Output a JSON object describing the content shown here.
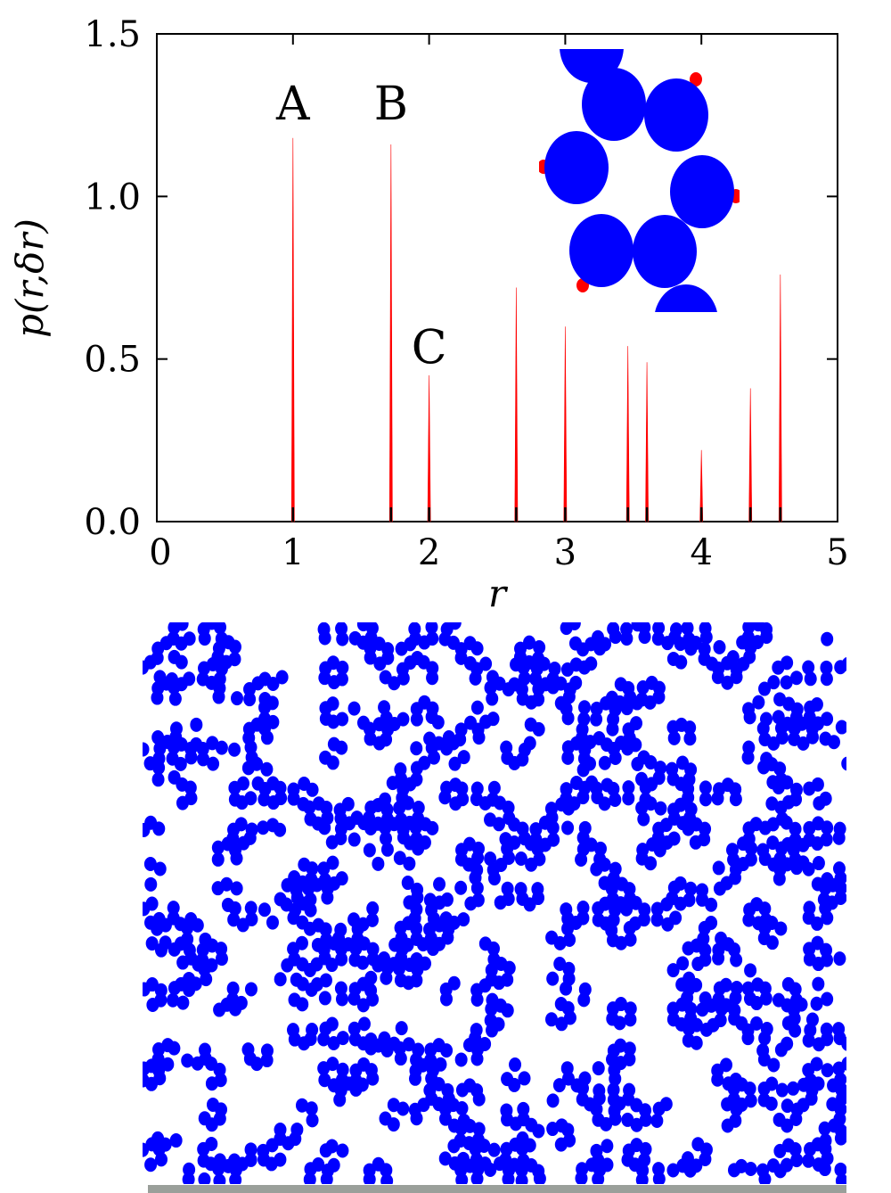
{
  "chart_data": {
    "type": "line",
    "xlabel": "r",
    "ylabel": "p(r,δr)",
    "xlim": [
      0,
      5
    ],
    "ylim": [
      0,
      1.5
    ],
    "x_ticks": [
      "0",
      "1",
      "2",
      "3",
      "4",
      "5"
    ],
    "y_ticks": [
      "0.0",
      "0.5",
      "1.0",
      "1.5"
    ],
    "grid": false,
    "series": [
      {
        "color": "#ff0000",
        "peaks": [
          {
            "x": 1.0,
            "y": 1.18
          },
          {
            "x": 1.72,
            "y": 1.16
          },
          {
            "x": 2.0,
            "y": 0.45
          },
          {
            "x": 2.64,
            "y": 0.72
          },
          {
            "x": 3.0,
            "y": 0.6
          },
          {
            "x": 3.46,
            "y": 0.54
          },
          {
            "x": 3.6,
            "y": 0.49
          },
          {
            "x": 4.0,
            "y": 0.22
          },
          {
            "x": 4.36,
            "y": 0.41
          },
          {
            "x": 4.58,
            "y": 0.76
          }
        ]
      }
    ],
    "annotations": [
      {
        "text": "A",
        "x": 1.0,
        "y": 1.25
      },
      {
        "text": "B",
        "x": 1.72,
        "y": 1.25
      },
      {
        "text": "C",
        "x": 2.0,
        "y": 0.5
      }
    ]
  },
  "colors": {
    "particle": "#0000ff",
    "patch": "#ff0000",
    "wall": "#9a9f9a"
  }
}
